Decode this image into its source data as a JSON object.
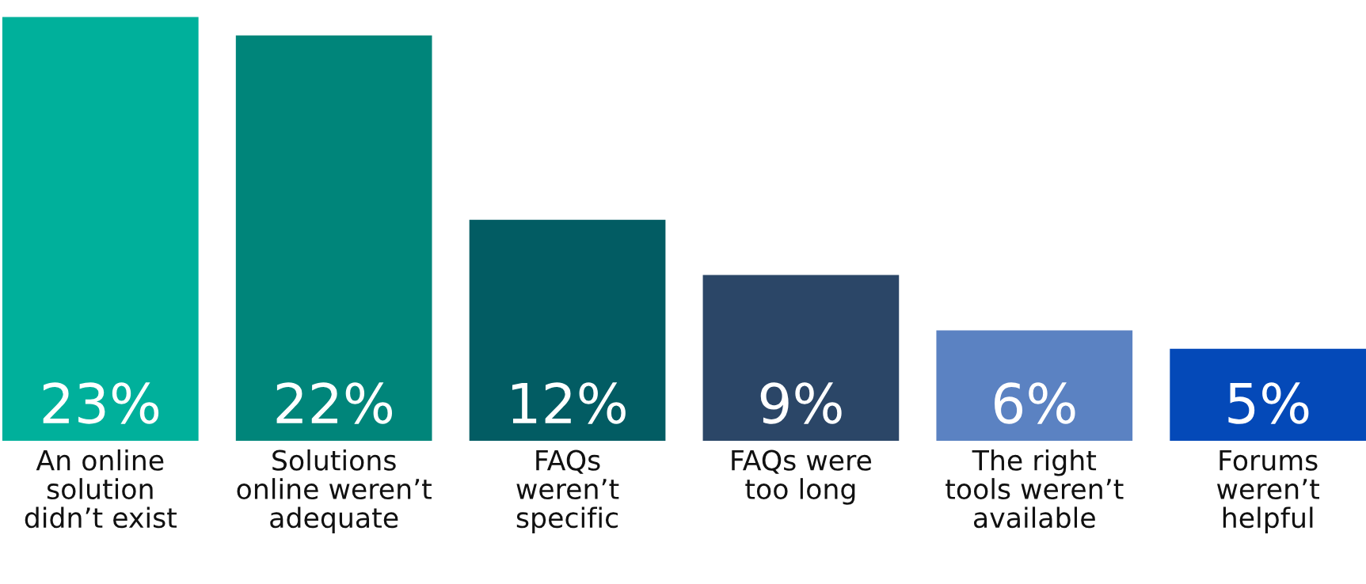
{
  "chart_data": {
    "type": "bar",
    "categories": [
      "An online\nsolution\ndidn’t exist",
      "Solutions\nonline weren’t\nadequate",
      "FAQs\nweren’t\nspecific",
      "FAQs were\ntoo long",
      "The right\ntools weren’t\navailable",
      "Forums\nweren’t\nhelpful"
    ],
    "values": [
      23,
      22,
      12,
      9,
      6,
      5
    ],
    "colors": [
      "#00b09b",
      "#00857a",
      "#025c63",
      "#2b4667",
      "#5b82c2",
      "#0449b8"
    ],
    "value_labels": [
      "23%",
      "22%",
      "12%",
      "9%",
      "6%",
      "5%"
    ]
  }
}
